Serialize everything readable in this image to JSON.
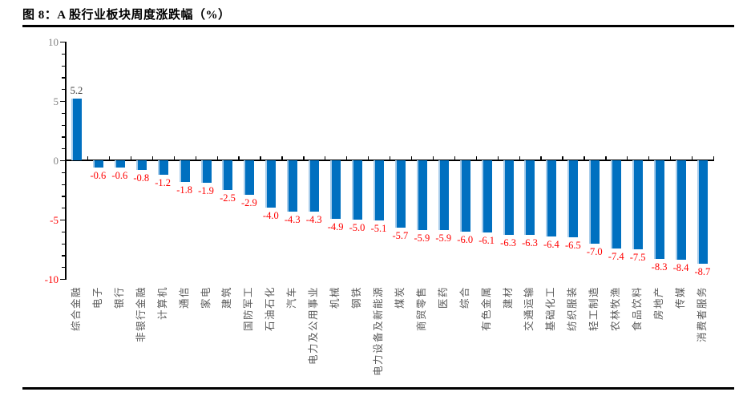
{
  "page": {
    "figure_label": "图 8"
  },
  "chart_data": {
    "type": "bar",
    "title": "图 8：A 股行业板块周度涨跌幅（%）",
    "xlabel": "",
    "ylabel": "",
    "ylim": [
      -10,
      10
    ],
    "yticks": [
      10,
      5,
      0,
      -5,
      -10
    ],
    "minor_tick_step": 1,
    "grid": false,
    "legend_position": "none",
    "colors": {
      "bar_fill": "#0070C0",
      "bar_highlight": "#A9CDEB",
      "positive_value_label": "#404040",
      "negative_value_label": "#FF0000",
      "positive_axis_label": "#828282",
      "negative_axis_label": "#FF0000",
      "category_label": "#595959",
      "axis_line": "#000000"
    },
    "categories": [
      "综合金融",
      "电子",
      "银行",
      "非银行金融",
      "计算机",
      "通信",
      "家电",
      "建筑",
      "国防军工",
      "石油石化",
      "汽车",
      "电力及公用事业",
      "机械",
      "钢铁",
      "电力设备及新能源",
      "煤炭",
      "商贸零售",
      "医药",
      "综合",
      "有色金属",
      "建材",
      "交通运输",
      "基础化工",
      "纺织服装",
      "轻工制造",
      "农林牧渔",
      "食品饮料",
      "房地产",
      "传媒",
      "消费者服务"
    ],
    "values": [
      5.2,
      -0.6,
      -0.6,
      -0.8,
      -1.2,
      -1.8,
      -1.9,
      -2.5,
      -2.9,
      -4.0,
      -4.3,
      -4.3,
      -4.9,
      -5.0,
      -5.1,
      -5.7,
      -5.9,
      -5.9,
      -6.0,
      -6.1,
      -6.3,
      -6.3,
      -6.4,
      -6.5,
      -7.0,
      -7.4,
      -7.5,
      -8.3,
      -8.4,
      -8.7
    ],
    "value_labels": [
      "5.2",
      "-0.6",
      "-0.6",
      "-0.8",
      "-1.2",
      "-1.8",
      "-1.9",
      "-2.5",
      "-2.9",
      "-4.0",
      "-4.3",
      "-4.3",
      "-4.9",
      "-5.0",
      "-5.1",
      "-5.7",
      "-5.9",
      "-5.9",
      "-6.0",
      "-6.1",
      "-6.3",
      "-6.3",
      "-6.4",
      "-6.5",
      "-7.0",
      "-7.4",
      "-7.5",
      "-8.3",
      "-8.4",
      "-8.7"
    ]
  }
}
